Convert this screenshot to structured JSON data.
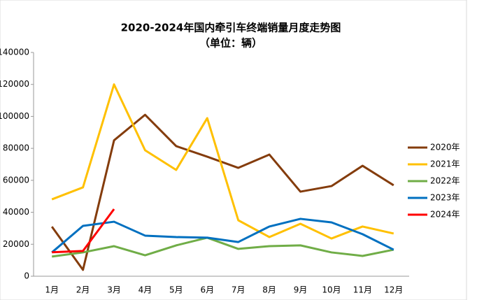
{
  "chart_data": {
    "type": "line",
    "title": "2020-2024年国内牵引车终端销量月度走势图",
    "subtitle": "（单位：辆）",
    "categories": [
      "1月",
      "2月",
      "3月",
      "4月",
      "5月",
      "6月",
      "7月",
      "8月",
      "9月",
      "10月",
      "11月",
      "12月"
    ],
    "series": [
      {
        "name": "2020年",
        "color": "#843c0c",
        "values": [
          31000,
          4000,
          85000,
          101000,
          81400,
          74800,
          67800,
          76100,
          52900,
          56400,
          69100,
          56900
        ]
      },
      {
        "name": "2021年",
        "color": "#ffc000",
        "values": [
          48100,
          55600,
          120000,
          78800,
          66500,
          98900,
          35000,
          24500,
          32800,
          23600,
          31100,
          26700
        ]
      },
      {
        "name": "2022年",
        "color": "#70ad47",
        "values": [
          12300,
          14900,
          18800,
          13100,
          19300,
          24100,
          17100,
          18800,
          19300,
          14900,
          12700,
          16600
        ]
      },
      {
        "name": "2023年",
        "color": "#0070c0",
        "values": [
          14900,
          31500,
          34100,
          25400,
          24500,
          24100,
          21400,
          31100,
          35900,
          33700,
          26300,
          16600
        ]
      },
      {
        "name": "2024年",
        "color": "#ff0000",
        "values": [
          15000,
          15800,
          42000,
          null,
          null,
          null,
          null,
          null,
          null,
          null,
          null,
          null
        ]
      }
    ],
    "ylim": [
      0,
      140000
    ],
    "yticks": [
      0,
      20000,
      40000,
      60000,
      80000,
      100000,
      120000,
      140000
    ],
    "grid": false,
    "legend": "right"
  }
}
